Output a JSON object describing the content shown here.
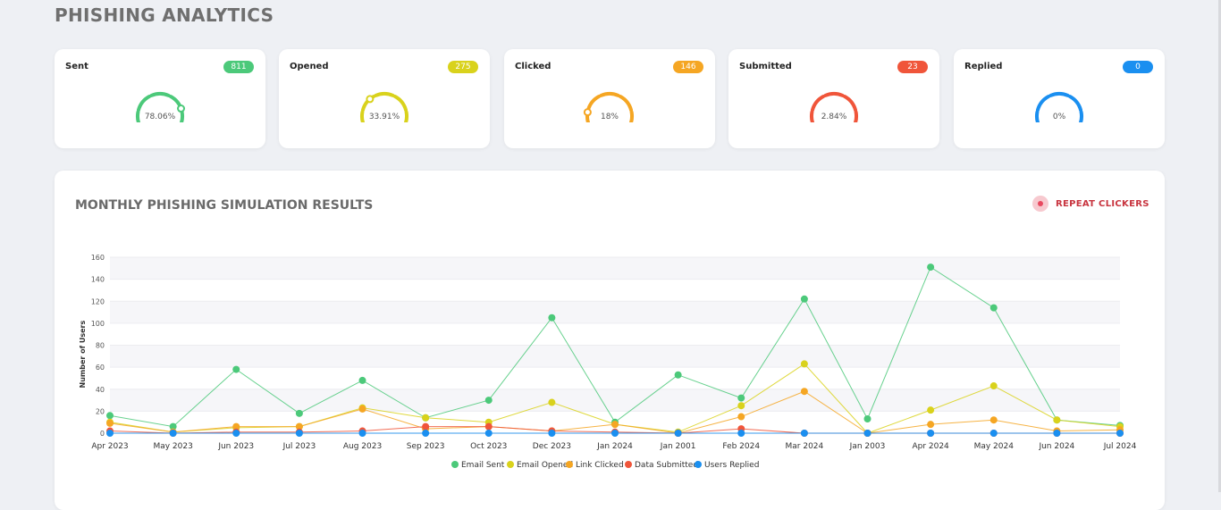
{
  "page": {
    "title": "PHISHING ANALYTICS"
  },
  "cards": [
    {
      "label": "Sent",
      "count": "811",
      "percent": "78.06%",
      "fraction": 0.7806,
      "color": "#4cc97a"
    },
    {
      "label": "Opened",
      "count": "275",
      "percent": "33.91%",
      "fraction": 0.3391,
      "color": "#d9d21c"
    },
    {
      "label": "Clicked",
      "count": "146",
      "percent": "18%",
      "fraction": 0.18,
      "color": "#f5a623"
    },
    {
      "label": "Submitted",
      "count": "23",
      "percent": "2.84%",
      "fraction": 0.0284,
      "color": "#f0553a"
    },
    {
      "label": "Replied",
      "count": "0",
      "percent": "0%",
      "fraction": 0.0,
      "color": "#1a8ff0"
    }
  ],
  "panel": {
    "title": "MONTHLY PHISHING SIMULATION RESULTS",
    "repeat_label": "REPEAT CLICKERS"
  },
  "chart_data": {
    "type": "line",
    "ylabel": "Number of Users",
    "ylim": [
      0,
      160
    ],
    "yticks": [
      0,
      20,
      40,
      60,
      80,
      100,
      120,
      140,
      160
    ],
    "grid": true,
    "legend": "bottom",
    "categories": [
      "Apr 2023",
      "May 2023",
      "Jun 2023",
      "Jul 2023",
      "Aug 2023",
      "Sep 2023",
      "Oct 2023",
      "Dec 2023",
      "Jan 2024",
      "Jan 2001",
      "Feb 2024",
      "Mar 2024",
      "Jan 2003",
      "Apr 2024",
      "May 2024",
      "Jun 2024",
      "Jul 2024"
    ],
    "series": [
      {
        "name": "Email Sent",
        "color": "#4cc97a",
        "values": [
          16,
          6,
          58,
          18,
          48,
          14,
          30,
          105,
          10,
          53,
          32,
          122,
          13,
          151,
          114,
          12,
          7
        ]
      },
      {
        "name": "Email Opened",
        "color": "#d9d21c",
        "values": [
          10,
          1,
          5,
          6,
          23,
          14,
          10,
          28,
          8,
          1,
          25,
          63,
          0,
          21,
          43,
          12,
          6
        ]
      },
      {
        "name": "Link Clicked",
        "color": "#f5a623",
        "values": [
          9,
          1,
          6,
          6,
          22,
          4,
          6,
          2,
          8,
          0,
          15,
          38,
          0,
          8,
          12,
          2,
          3
        ]
      },
      {
        "name": "Data Submitted",
        "color": "#f0553a",
        "values": [
          2,
          0,
          1,
          1,
          2,
          6,
          6,
          2,
          1,
          0,
          4,
          0,
          0,
          0,
          0,
          0,
          0
        ]
      },
      {
        "name": "Users Replied",
        "color": "#1a8ff0",
        "values": [
          0,
          0,
          0,
          0,
          0,
          0,
          0,
          0,
          0,
          0,
          0,
          0,
          0,
          0,
          0,
          0,
          0
        ]
      }
    ]
  }
}
